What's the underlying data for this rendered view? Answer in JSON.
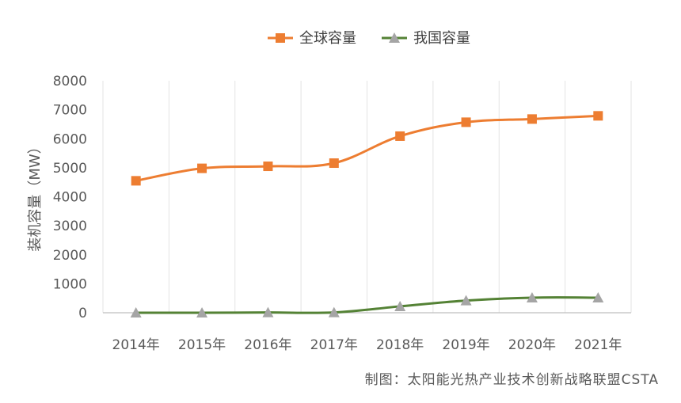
{
  "chart_data": {
    "type": "line",
    "categories": [
      "2014年",
      "2015年",
      "2016年",
      "2017年",
      "2018年",
      "2019年",
      "2020年",
      "2021年"
    ],
    "series": [
      {
        "name": "全球容量",
        "color": "#ED7D31",
        "marker": "square",
        "values": [
          4550,
          4980,
          5050,
          5160,
          6090,
          6570,
          6680,
          6790
        ]
      },
      {
        "name": "我国容量",
        "color": "#548235",
        "marker": "triangle",
        "values": [
          0,
          0,
          10,
          10,
          220,
          420,
          520,
          520
        ]
      }
    ],
    "xlabel": "",
    "ylabel": "装机容量（MW）",
    "ylim": [
      0,
      8000
    ],
    "yticks": [
      0,
      1000,
      2000,
      3000,
      4000,
      5000,
      6000,
      7000,
      8000
    ],
    "grid": "vertical",
    "legend": "top-center",
    "source": "制图：太阳能光热产业技术创新战略联盟CSTA"
  }
}
